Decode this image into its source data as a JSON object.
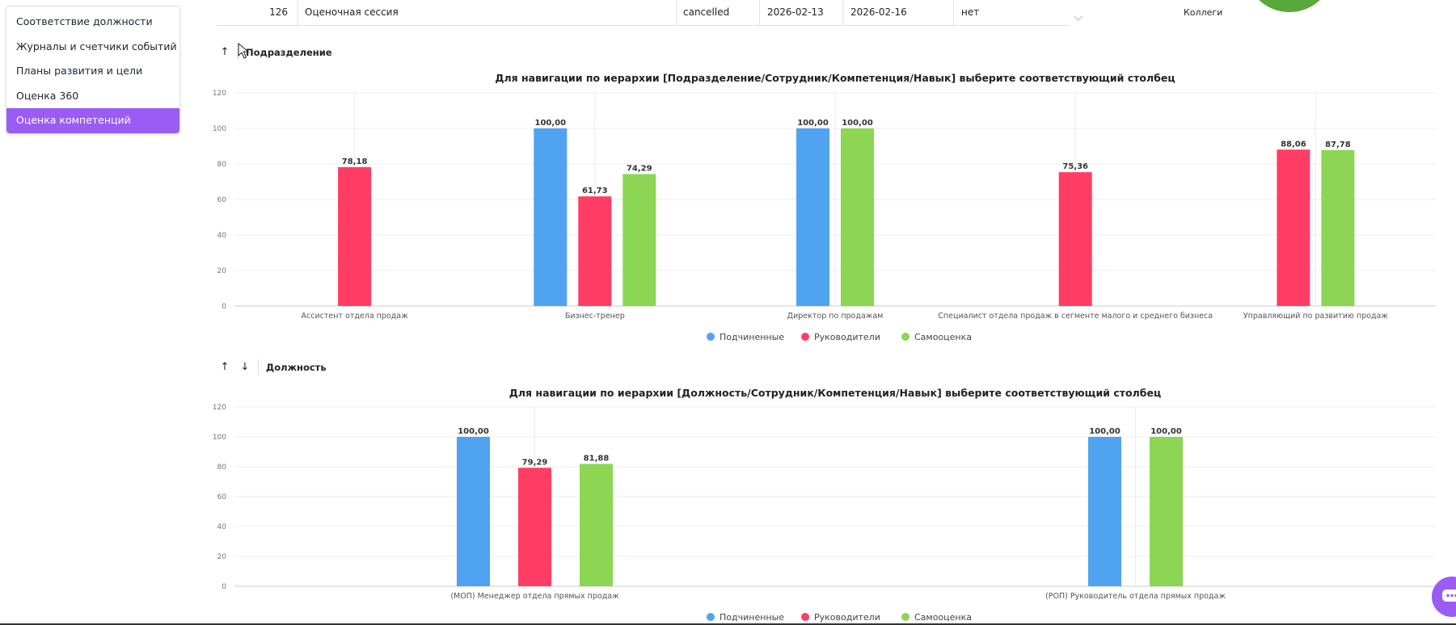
{
  "sidebar": {
    "items": [
      {
        "label": "Соответствие должности"
      },
      {
        "label": "Журналы и счетчики событий"
      },
      {
        "label": "Планы развития и цели"
      },
      {
        "label": "Оценка 360"
      },
      {
        "label": "Оценка компетенций",
        "active": true
      }
    ]
  },
  "table": {
    "row": {
      "id": "126",
      "name": "Оценочная сессия",
      "status": "cancelled",
      "start": "2026-02-13",
      "end": "2026-02-16",
      "flag": "нет"
    },
    "side_label": "Коллеги"
  },
  "section1": {
    "label": "Подразделение",
    "up_icon": "↑"
  },
  "section2": {
    "label": "Должность",
    "up_icon": "↑",
    "down_icon": "↓"
  },
  "colors": {
    "subordinates": "#4fa3f0",
    "managers": "#ff3d64",
    "self": "#8cd653",
    "accent": "#9a5cf5"
  },
  "chat": {
    "icon": "chat-icon"
  },
  "chart_data": [
    {
      "type": "bar",
      "title": "Для навигации по иерархии [Подразделение/Сотрудник/Компетенция/Навык] выберите соответствующий столбец",
      "categories": [
        "Ассистент отдела продаж",
        "Бизнес-тренер",
        "Директор по продажам",
        "Специалист отдела продаж в сегменте малого и среднего бизнеса",
        "Управляющий по развитию продаж"
      ],
      "series": [
        {
          "name": "Подчиненные",
          "color": "#4fa3f0",
          "values": [
            null,
            100,
            100,
            null,
            null
          ],
          "labels": [
            "",
            "100,00",
            "100,00",
            "",
            ""
          ]
        },
        {
          "name": "Руководители",
          "color": "#ff3d64",
          "values": [
            78.18,
            61.73,
            null,
            75.36,
            88.06
          ],
          "labels": [
            "78,18",
            "61,73",
            "",
            "75,36",
            "88,06"
          ]
        },
        {
          "name": "Самооценка",
          "color": "#8cd653",
          "values": [
            null,
            74.29,
            100,
            null,
            87.78
          ],
          "labels": [
            "",
            "74,29",
            "100,00",
            "",
            "87,78"
          ]
        }
      ],
      "ylim": [
        0,
        120
      ],
      "yticks": [
        "0",
        "20",
        "40",
        "60",
        "80",
        "100",
        "120"
      ],
      "grid": true,
      "legend": "bottom"
    },
    {
      "type": "bar",
      "title": "Для навигации по иерархии [Должность/Сотрудник/Компетенция/Навык] выберите соответствующий столбец",
      "categories": [
        "(МОП) Менеджер отдела прямых продаж",
        "(РОП) Руководитель отдела прямых продаж"
      ],
      "series": [
        {
          "name": "Подчиненные",
          "color": "#4fa3f0",
          "values": [
            100,
            100
          ],
          "labels": [
            "100,00",
            "100,00"
          ]
        },
        {
          "name": "Руководители",
          "color": "#ff3d64",
          "values": [
            79.29,
            null
          ],
          "labels": [
            "79,29",
            ""
          ]
        },
        {
          "name": "Самооценка",
          "color": "#8cd653",
          "values": [
            81.88,
            100
          ],
          "labels": [
            "81,88",
            "100,00"
          ]
        }
      ],
      "ylim": [
        0,
        120
      ],
      "yticks": [
        "0",
        "20",
        "40",
        "60",
        "80",
        "100",
        "120"
      ],
      "grid": true,
      "legend": "bottom"
    }
  ]
}
